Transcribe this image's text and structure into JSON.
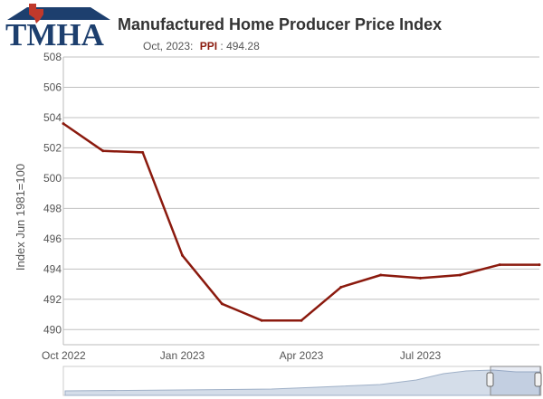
{
  "logo": {
    "text": "TMHA"
  },
  "header": {
    "title": "Manufactured Home Producer Price Index",
    "tooltip_date": "Oct, 2023:",
    "tooltip_series": "PPI",
    "tooltip_value": "494.28"
  },
  "colors": {
    "line": "#8b1a0e",
    "grid": "#c0c0c0",
    "logo_blue": "#1d3f6e",
    "logo_red": "#c0392b",
    "navigator_fill": "#d4dde9",
    "navigator_line": "#9fb0c7"
  },
  "chart_data": {
    "type": "line",
    "title": "Manufactured Home Producer Price Index",
    "ylabel": "Index Jun 1981=100",
    "xlabel": "",
    "ylim": [
      489,
      508
    ],
    "yticks": [
      490,
      492,
      494,
      496,
      498,
      500,
      502,
      504,
      506,
      508
    ],
    "xticks": [
      "Oct 2022",
      "Jan 2023",
      "Apr 2023",
      "Jul 2023"
    ],
    "grid": "horizontal",
    "x": [
      "2022-10",
      "2022-11",
      "2022-12",
      "2023-01",
      "2023-02",
      "2023-03",
      "2023-04",
      "2023-05",
      "2023-06",
      "2023-07",
      "2023-08",
      "2023-09",
      "2023-10"
    ],
    "series": [
      {
        "name": "PPI",
        "values": [
          503.6,
          501.8,
          501.7,
          494.9,
          491.7,
          490.6,
          490.6,
          492.8,
          493.6,
          493.4,
          493.6,
          494.28,
          494.28
        ]
      }
    ]
  }
}
